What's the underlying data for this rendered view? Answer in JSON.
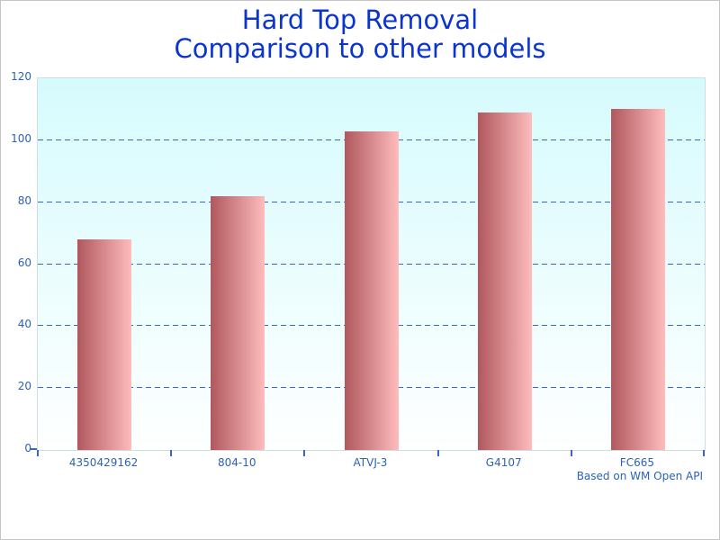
{
  "window": {
    "background": "#ffffff",
    "border_color": "#c4c4c4"
  },
  "chart_data": {
    "type": "bar",
    "title": "Hard Top Removal",
    "subtitle": "Comparison to other models",
    "categories": [
      "4350429162",
      "804-10",
      "ATVJ-3",
      "G4107",
      "FC665"
    ],
    "values": [
      68,
      82,
      103,
      109,
      110
    ],
    "xlabel": "",
    "ylabel": "",
    "ylim": [
      0,
      120
    ],
    "yticks": [
      0,
      20,
      40,
      60,
      80,
      100,
      120
    ],
    "grid": "horizontal dashed lines at interior y ticks",
    "legend": "none",
    "footnote": "Based on WM Open API",
    "colors": {
      "title": "#0b35cd",
      "tick_labels": "#2b62b8",
      "gridline": "#3a66c4",
      "bar_gradient_left": "#b0585e",
      "bar_gradient_right": "#febcbc",
      "plot_bg_top": "#d6fbfd",
      "plot_bg_bottom": "#feffff",
      "plot_border": "#cfdede"
    }
  }
}
